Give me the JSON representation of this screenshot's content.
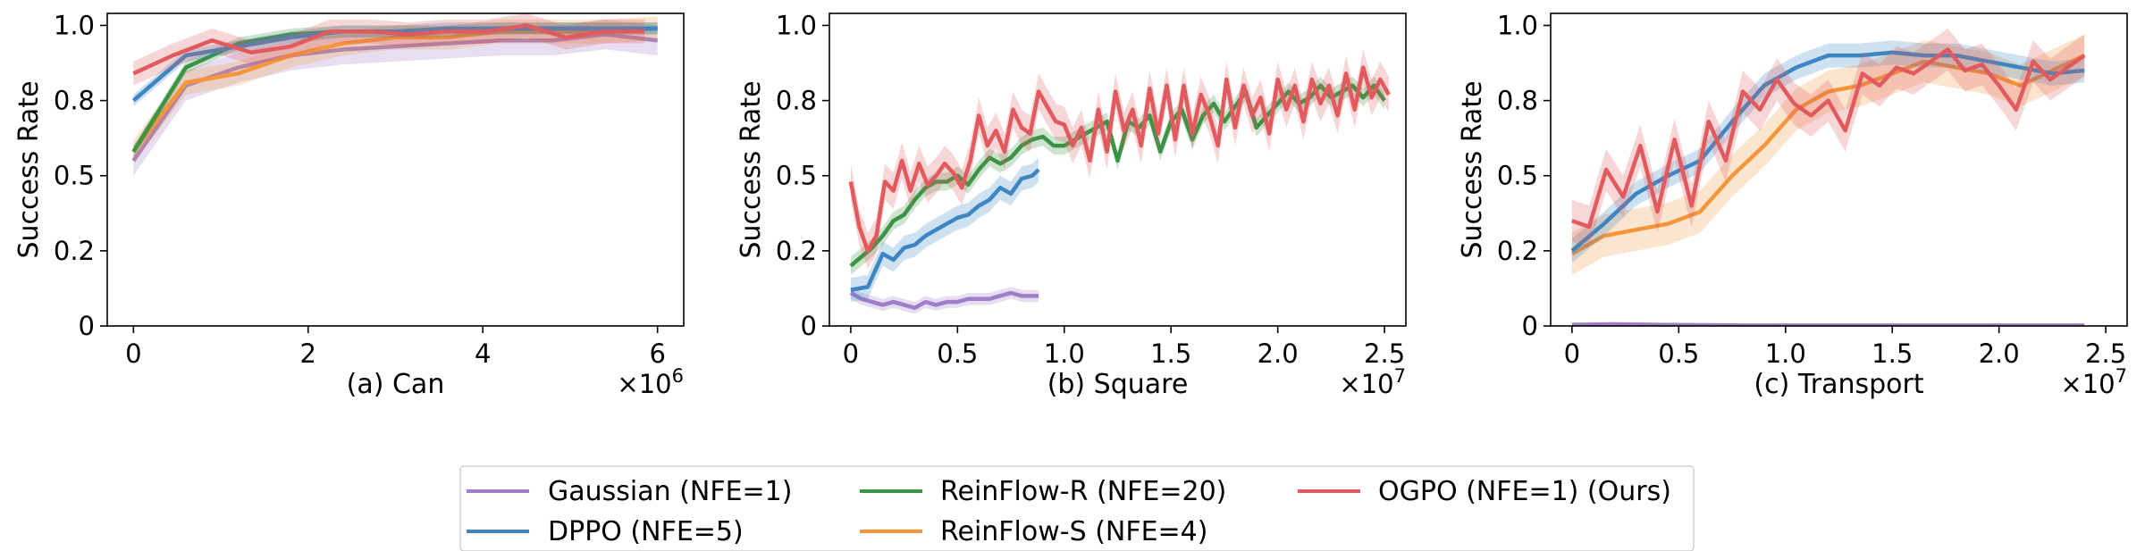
{
  "colors": {
    "gaussian": "#9f7fc8",
    "dppo": "#3d86c2",
    "reinflow_r": "#3b9344",
    "reinflow_s": "#f5963a",
    "ogpo": "#e15a5e"
  },
  "legend": [
    {
      "key": "gaussian",
      "label": "Gaussian (NFE=1)"
    },
    {
      "key": "dppo",
      "label": "DPPO (NFE=5)"
    },
    {
      "key": "reinflow_r",
      "label": "ReinFlow-R (NFE=20)"
    },
    {
      "key": "reinflow_s",
      "label": "ReinFlow-S (NFE=4)"
    },
    {
      "key": "ogpo",
      "label": "OGPO (NFE=1) (Ours)"
    }
  ],
  "chart_data": [
    {
      "type": "line",
      "xlabel": "(a) Can",
      "ylabel": "Success Rate",
      "x_multiplier": "×10",
      "x_exponent": "6",
      "xlim": [
        -0.3,
        6.3
      ],
      "ylim": [
        0,
        1.04
      ],
      "xticks": [
        0,
        2,
        4,
        6
      ],
      "xtick_labels": [
        "0",
        "2",
        "4",
        "6"
      ],
      "yticks": [
        0,
        0.25,
        0.5,
        0.75,
        1.0
      ],
      "ytick_labels": [
        "0",
        "0.2",
        "0.5",
        "0.8",
        "1.0"
      ],
      "series": [
        {
          "key": "gaussian",
          "x": [
            0,
            0.6,
            1.2,
            1.8,
            2.4,
            3.0,
            3.6,
            4.2,
            4.8,
            5.4,
            6.0
          ],
          "y": [
            0.55,
            0.8,
            0.86,
            0.9,
            0.92,
            0.93,
            0.94,
            0.95,
            0.95,
            0.97,
            0.95
          ],
          "band": 0.05
        },
        {
          "key": "reinflow_s",
          "x": [
            0,
            0.6,
            1.2,
            1.8,
            2.4,
            3.0,
            3.6,
            4.2,
            4.8,
            5.4,
            6.0
          ],
          "y": [
            0.58,
            0.81,
            0.84,
            0.9,
            0.94,
            0.96,
            0.96,
            0.98,
            0.98,
            0.98,
            0.99
          ],
          "band": 0.04
        },
        {
          "key": "reinflow_r",
          "x": [
            0,
            0.6,
            1.2,
            1.8,
            2.4,
            3.0,
            3.6,
            4.2,
            4.8,
            5.4,
            6.0
          ],
          "y": [
            0.58,
            0.86,
            0.94,
            0.97,
            0.98,
            0.98,
            0.98,
            0.99,
            0.99,
            0.99,
            0.99
          ],
          "band": 0.02
        },
        {
          "key": "dppo",
          "x": [
            0,
            0.6,
            1.2,
            1.8,
            2.4,
            3.0,
            3.6,
            4.2,
            4.8,
            5.4,
            6.0
          ],
          "y": [
            0.75,
            0.9,
            0.93,
            0.96,
            0.98,
            0.98,
            0.99,
            0.99,
            0.99,
            0.99,
            0.99
          ],
          "band": 0.02
        },
        {
          "key": "ogpo",
          "x": [
            0,
            0.45,
            0.9,
            1.35,
            1.8,
            2.25,
            2.7,
            3.15,
            3.6,
            4.05,
            4.5,
            4.95,
            5.4,
            5.85
          ],
          "y": [
            0.84,
            0.9,
            0.95,
            0.91,
            0.93,
            0.98,
            0.98,
            0.97,
            0.98,
            0.98,
            1.0,
            0.96,
            0.98,
            0.98
          ],
          "band": 0.04
        }
      ]
    },
    {
      "type": "line",
      "xlabel": "(b) Square",
      "ylabel": "Success Rate",
      "x_multiplier": "×10",
      "x_exponent": "7",
      "xlim": [
        -0.1,
        2.6
      ],
      "ylim": [
        0,
        1.04
      ],
      "xticks": [
        0,
        0.5,
        1.0,
        1.5,
        2.0,
        2.5
      ],
      "xtick_labels": [
        "0",
        "0.5",
        "1.0",
        "1.5",
        "2.0",
        "2.5"
      ],
      "yticks": [
        0,
        0.25,
        0.5,
        0.75,
        1.0
      ],
      "ytick_labels": [
        "0",
        "0.2",
        "0.5",
        "0.8",
        "1.0"
      ],
      "series": [
        {
          "key": "gaussian",
          "x": [
            0,
            0.05,
            0.1,
            0.15,
            0.2,
            0.25,
            0.3,
            0.35,
            0.4,
            0.45,
            0.5,
            0.55,
            0.6,
            0.65,
            0.7,
            0.75,
            0.8,
            0.85,
            0.88
          ],
          "y": [
            0.11,
            0.09,
            0.08,
            0.07,
            0.08,
            0.07,
            0.06,
            0.08,
            0.07,
            0.08,
            0.08,
            0.09,
            0.09,
            0.09,
            0.1,
            0.11,
            0.1,
            0.1,
            0.1
          ],
          "band": 0.02
        },
        {
          "key": "dppo",
          "x": [
            0,
            0.08,
            0.15,
            0.2,
            0.25,
            0.3,
            0.35,
            0.4,
            0.45,
            0.5,
            0.55,
            0.6,
            0.65,
            0.7,
            0.75,
            0.8,
            0.85,
            0.88
          ],
          "y": [
            0.12,
            0.13,
            0.24,
            0.22,
            0.26,
            0.27,
            0.3,
            0.32,
            0.34,
            0.36,
            0.37,
            0.4,
            0.42,
            0.46,
            0.44,
            0.49,
            0.5,
            0.52
          ],
          "band": 0.04
        },
        {
          "key": "reinflow_r",
          "x": [
            0,
            0.1,
            0.15,
            0.2,
            0.25,
            0.3,
            0.35,
            0.4,
            0.45,
            0.5,
            0.55,
            0.6,
            0.65,
            0.7,
            0.75,
            0.8,
            0.85,
            0.9,
            0.95,
            1.0,
            1.05,
            1.1,
            1.15,
            1.2,
            1.25,
            1.3,
            1.35,
            1.4,
            1.45,
            1.5,
            1.55,
            1.6,
            1.65,
            1.7,
            1.75,
            1.8,
            1.85,
            1.9,
            1.95,
            2.0,
            2.05,
            2.1,
            2.15,
            2.2,
            2.25,
            2.3,
            2.35,
            2.4,
            2.45,
            2.5
          ],
          "y": [
            0.2,
            0.26,
            0.3,
            0.35,
            0.37,
            0.42,
            0.46,
            0.48,
            0.48,
            0.5,
            0.47,
            0.52,
            0.56,
            0.54,
            0.56,
            0.6,
            0.62,
            0.63,
            0.6,
            0.6,
            0.62,
            0.64,
            0.66,
            0.68,
            0.55,
            0.68,
            0.66,
            0.7,
            0.58,
            0.68,
            0.72,
            0.62,
            0.7,
            0.74,
            0.68,
            0.73,
            0.78,
            0.66,
            0.7,
            0.74,
            0.78,
            0.74,
            0.76,
            0.8,
            0.76,
            0.78,
            0.8,
            0.76,
            0.8,
            0.75
          ],
          "band": 0.03
        },
        {
          "key": "ogpo",
          "x": [
            0,
            0.04,
            0.08,
            0.12,
            0.16,
            0.2,
            0.24,
            0.28,
            0.32,
            0.36,
            0.4,
            0.44,
            0.48,
            0.52,
            0.56,
            0.6,
            0.64,
            0.68,
            0.72,
            0.76,
            0.8,
            0.84,
            0.88,
            0.92,
            0.96,
            1.0,
            1.04,
            1.08,
            1.12,
            1.16,
            1.2,
            1.24,
            1.28,
            1.32,
            1.36,
            1.4,
            1.44,
            1.48,
            1.52,
            1.56,
            1.6,
            1.64,
            1.68,
            1.72,
            1.76,
            1.8,
            1.84,
            1.88,
            1.92,
            1.96,
            2.0,
            2.04,
            2.08,
            2.12,
            2.16,
            2.2,
            2.24,
            2.28,
            2.32,
            2.36,
            2.4,
            2.44,
            2.48,
            2.52
          ],
          "y": [
            0.48,
            0.33,
            0.25,
            0.3,
            0.48,
            0.45,
            0.55,
            0.45,
            0.54,
            0.47,
            0.5,
            0.54,
            0.51,
            0.46,
            0.55,
            0.7,
            0.6,
            0.65,
            0.58,
            0.72,
            0.66,
            0.64,
            0.78,
            0.73,
            0.68,
            0.67,
            0.6,
            0.66,
            0.55,
            0.72,
            0.58,
            0.78,
            0.65,
            0.72,
            0.6,
            0.79,
            0.64,
            0.8,
            0.62,
            0.8,
            0.64,
            0.77,
            0.7,
            0.6,
            0.82,
            0.66,
            0.8,
            0.7,
            0.76,
            0.64,
            0.82,
            0.72,
            0.8,
            0.68,
            0.82,
            0.74,
            0.8,
            0.7,
            0.84,
            0.72,
            0.86,
            0.76,
            0.82,
            0.77
          ],
          "band": 0.06
        }
      ]
    },
    {
      "type": "line",
      "xlabel": "(c) Transport",
      "ylabel": "Success Rate",
      "x_multiplier": "×10",
      "x_exponent": "7",
      "xlim": [
        -0.1,
        2.6
      ],
      "ylim": [
        0,
        1.04
      ],
      "xticks": [
        0,
        0.5,
        1.0,
        1.5,
        2.0,
        2.5
      ],
      "xtick_labels": [
        "0",
        "0.5",
        "1.0",
        "1.5",
        "2.0",
        "2.5"
      ],
      "yticks": [
        0,
        0.25,
        0.5,
        0.75,
        1.0
      ],
      "ytick_labels": [
        "0",
        "0.2",
        "0.5",
        "0.8",
        "1.0"
      ],
      "series": [
        {
          "key": "gaussian",
          "x": [
            0,
            0.2,
            0.4,
            0.6,
            0.8,
            1.0,
            1.2,
            1.4,
            1.6,
            1.8,
            2.0,
            2.2,
            2.4
          ],
          "y": [
            0.004,
            0.006,
            0.004,
            0.003,
            0.002,
            0.002,
            0.002,
            0.002,
            0.002,
            0.002,
            0.002,
            0.002,
            0.002
          ],
          "band": 0.004
        },
        {
          "key": "reinflow_s",
          "x": [
            0,
            0.15,
            0.3,
            0.45,
            0.6,
            0.75,
            0.9,
            1.05,
            1.2,
            1.35,
            1.5,
            1.65,
            1.8,
            1.95,
            2.1,
            2.25,
            2.4
          ],
          "y": [
            0.24,
            0.3,
            0.32,
            0.34,
            0.38,
            0.5,
            0.6,
            0.72,
            0.78,
            0.8,
            0.84,
            0.88,
            0.86,
            0.84,
            0.8,
            0.85,
            0.9
          ],
          "band": 0.07
        },
        {
          "key": "dppo",
          "x": [
            0,
            0.15,
            0.3,
            0.45,
            0.6,
            0.75,
            0.9,
            1.05,
            1.2,
            1.35,
            1.5,
            1.65,
            1.8,
            1.95,
            2.1,
            2.25,
            2.4
          ],
          "y": [
            0.25,
            0.34,
            0.44,
            0.5,
            0.55,
            0.68,
            0.8,
            0.86,
            0.9,
            0.9,
            0.91,
            0.9,
            0.9,
            0.88,
            0.86,
            0.84,
            0.85
          ],
          "band": 0.04
        },
        {
          "key": "ogpo",
          "x": [
            0,
            0.08,
            0.16,
            0.24,
            0.32,
            0.4,
            0.48,
            0.56,
            0.64,
            0.72,
            0.8,
            0.88,
            0.96,
            1.04,
            1.12,
            1.2,
            1.28,
            1.36,
            1.44,
            1.52,
            1.6,
            1.68,
            1.76,
            1.84,
            1.92,
            2.0,
            2.08,
            2.16,
            2.24,
            2.32,
            2.4
          ],
          "y": [
            0.35,
            0.33,
            0.52,
            0.43,
            0.6,
            0.38,
            0.62,
            0.4,
            0.68,
            0.55,
            0.78,
            0.72,
            0.82,
            0.74,
            0.7,
            0.75,
            0.65,
            0.84,
            0.8,
            0.86,
            0.84,
            0.88,
            0.92,
            0.85,
            0.87,
            0.8,
            0.72,
            0.88,
            0.82,
            0.86,
            0.9
          ],
          "band": 0.07
        }
      ]
    }
  ]
}
